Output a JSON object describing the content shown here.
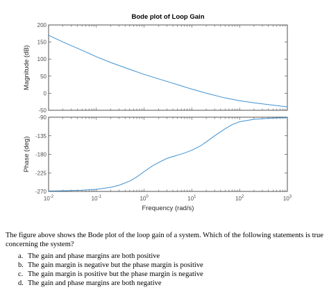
{
  "chart_data": [
    {
      "type": "line",
      "title": "Bode plot of Loop Gain",
      "xlabel": "",
      "ylabel": "Magnitude (dB)",
      "xscale": "log",
      "xlim": [
        0.01,
        1000
      ],
      "ylim": [
        -50,
        200
      ],
      "yticks": [
        -50,
        0,
        50,
        100,
        150,
        200
      ],
      "ytick_labels": [
        "-50",
        "0",
        "50",
        "100",
        "150",
        "200"
      ],
      "grid": false,
      "series": [
        {
          "color": "#3f90d0",
          "x": [
            0.01,
            0.02,
            0.05,
            0.1,
            0.2,
            0.5,
            1,
            2,
            5,
            10,
            20,
            50,
            100,
            200,
            500,
            1000
          ],
          "y": [
            170,
            150,
            126,
            107,
            90,
            70,
            55,
            42,
            25,
            12,
            0,
            -14,
            -22,
            -28,
            -35,
            -40
          ]
        }
      ]
    },
    {
      "type": "line",
      "title": "",
      "xlabel": "Frequency  (rad/s)",
      "ylabel": "Phase (deg)",
      "xscale": "log",
      "xlim": [
        0.01,
        1000
      ],
      "ylim": [
        -270,
        -90
      ],
      "xticks": [
        0.01,
        0.1,
        1,
        10,
        100,
        1000
      ],
      "xtick_labels": [
        {
          "base": "10",
          "exp": "-2"
        },
        {
          "base": "10",
          "exp": "-1"
        },
        {
          "base": "10",
          "exp": "0"
        },
        {
          "base": "10",
          "exp": "1"
        },
        {
          "base": "10",
          "exp": "2"
        },
        {
          "base": "10",
          "exp": "3"
        }
      ],
      "yticks": [
        -270,
        -225,
        -180,
        -135,
        -90
      ],
      "ytick_labels": [
        "-270",
        "-225",
        "-180",
        "-135",
        "-90"
      ],
      "grid": false,
      "series": [
        {
          "color": "#3f90d0",
          "x": [
            0.01,
            0.02,
            0.05,
            0.1,
            0.2,
            0.3,
            0.5,
            0.7,
            1,
            1.5,
            2,
            3,
            5,
            7,
            10,
            15,
            20,
            30,
            50,
            70,
            100,
            200,
            500,
            1000
          ],
          "y": [
            -269,
            -268.5,
            -267,
            -265,
            -260,
            -255,
            -245,
            -235,
            -222,
            -208,
            -200,
            -190,
            -182,
            -177,
            -170,
            -160,
            -150,
            -135,
            -118,
            -108,
            -101,
            -95,
            -92,
            -91
          ]
        }
      ]
    }
  ],
  "question": {
    "text": "The figure above shows the Bode plot of the loop gain of a system. Which of the following statements is true concerning the system?",
    "options": [
      {
        "letter": "a.",
        "text": "The gain and phase margins are both positive"
      },
      {
        "letter": "b.",
        "text": "The gain margin is negative but the phase margin is positive"
      },
      {
        "letter": "c.",
        "text": "The gain margin is positive but the phase margin is negative"
      },
      {
        "letter": "d.",
        "text": "The gain and phase margins are both negative"
      }
    ]
  }
}
